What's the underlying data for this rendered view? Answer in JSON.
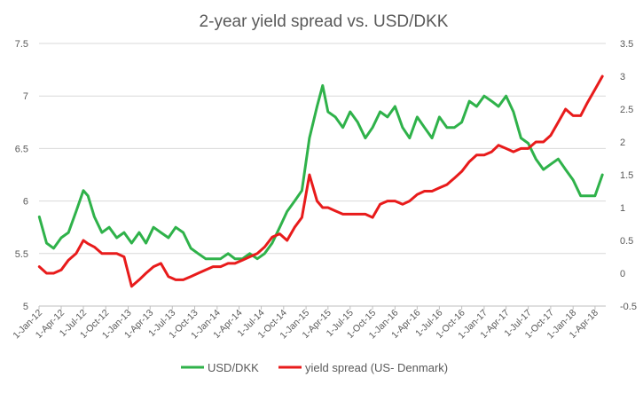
{
  "chart_data": {
    "type": "line",
    "title": "2-year yield spread vs. USD/DKK",
    "xlabel": "",
    "ylabel_left": "",
    "ylabel_right": "",
    "y_left_lim": [
      5,
      7.5
    ],
    "y_left_ticks": [
      "5",
      "5.5",
      "6",
      "6.5",
      "7",
      "7.5"
    ],
    "y_right_lim": [
      -0.5,
      3.5
    ],
    "y_right_ticks": [
      "-0.5",
      "0",
      "0.5",
      "1",
      "1.5",
      "2",
      "2.5",
      "3",
      "3.5"
    ],
    "x_tick_labels": [
      "1-Jan-12",
      "1-Apr-12",
      "1-Jul-12",
      "1-Oct-12",
      "1-Jan-13",
      "1-Apr-13",
      "1-Jul-13",
      "1-Oct-13",
      "1-Jan-14",
      "1-Apr-14",
      "1-Jul-14",
      "1-Oct-14",
      "1-Jan-15",
      "1-Apr-15",
      "1-Jul-15",
      "1-Oct-15",
      "1-Jan-16",
      "1-Apr-16",
      "1-Jul-16",
      "1-Oct-16",
      "1-Jan-17",
      "1-Apr-17",
      "1-Jul-17",
      "1-Oct-17",
      "1-Jan-18",
      "1-Apr-18"
    ],
    "grid": true,
    "legend_position": "bottom",
    "series": [
      {
        "name": "USD/DKK",
        "axis": "left",
        "color": "#2fb24a",
        "x": [
          "2012-01-02",
          "2012-02-01",
          "2012-03-01",
          "2012-04-01",
          "2012-05-01",
          "2012-06-01",
          "2012-07-01",
          "2012-07-20",
          "2012-08-15",
          "2012-09-15",
          "2012-10-15",
          "2012-11-15",
          "2012-12-15",
          "2013-01-15",
          "2013-02-15",
          "2013-03-15",
          "2013-04-15",
          "2013-05-15",
          "2013-06-15",
          "2013-07-15",
          "2013-08-15",
          "2013-09-15",
          "2013-10-15",
          "2013-11-15",
          "2013-12-15",
          "2014-01-15",
          "2014-02-15",
          "2014-03-15",
          "2014-04-15",
          "2014-05-15",
          "2014-06-15",
          "2014-07-15",
          "2014-08-15",
          "2014-09-15",
          "2014-10-15",
          "2014-11-15",
          "2014-12-15",
          "2015-01-15",
          "2015-02-15",
          "2015-03-10",
          "2015-04-01",
          "2015-05-01",
          "2015-06-01",
          "2015-07-01",
          "2015-08-01",
          "2015-09-01",
          "2015-10-01",
          "2015-11-01",
          "2015-12-01",
          "2016-01-01",
          "2016-02-01",
          "2016-03-01",
          "2016-04-01",
          "2016-05-01",
          "2016-06-01",
          "2016-07-01",
          "2016-08-01",
          "2016-09-01",
          "2016-10-01",
          "2016-11-01",
          "2016-12-01",
          "2017-01-01",
          "2017-02-01",
          "2017-03-01",
          "2017-04-01",
          "2017-05-01",
          "2017-06-01",
          "2017-07-01",
          "2017-08-01",
          "2017-09-01",
          "2017-10-01",
          "2017-11-01",
          "2017-12-01",
          "2018-01-01",
          "2018-02-01",
          "2018-03-01",
          "2018-04-01",
          "2018-05-01"
        ],
        "values": [
          5.85,
          5.6,
          5.55,
          5.65,
          5.7,
          5.9,
          6.1,
          6.05,
          5.85,
          5.7,
          5.75,
          5.65,
          5.7,
          5.6,
          5.7,
          5.6,
          5.75,
          5.7,
          5.65,
          5.75,
          5.7,
          5.55,
          5.5,
          5.45,
          5.45,
          5.45,
          5.5,
          5.45,
          5.45,
          5.5,
          5.45,
          5.5,
          5.6,
          5.75,
          5.9,
          6.0,
          6.1,
          6.6,
          6.9,
          7.1,
          6.85,
          6.8,
          6.7,
          6.85,
          6.75,
          6.6,
          6.7,
          6.85,
          6.8,
          6.9,
          6.7,
          6.6,
          6.8,
          6.7,
          6.6,
          6.8,
          6.7,
          6.7,
          6.75,
          6.95,
          6.9,
          7.0,
          6.95,
          6.9,
          7.0,
          6.85,
          6.6,
          6.55,
          6.4,
          6.3,
          6.35,
          6.4,
          6.3,
          6.2,
          6.05,
          6.05,
          6.05,
          6.25
        ]
      },
      {
        "name": "yield spread (US- Denmark)",
        "axis": "right",
        "color": "#e81b1b",
        "x": [
          "2012-01-02",
          "2012-02-01",
          "2012-03-01",
          "2012-04-01",
          "2012-05-01",
          "2012-06-01",
          "2012-07-01",
          "2012-07-20",
          "2012-08-15",
          "2012-09-15",
          "2012-10-15",
          "2012-11-15",
          "2012-12-15",
          "2013-01-15",
          "2013-02-15",
          "2013-03-15",
          "2013-04-15",
          "2013-05-15",
          "2013-06-15",
          "2013-07-15",
          "2013-08-15",
          "2013-09-15",
          "2013-10-15",
          "2013-11-15",
          "2013-12-15",
          "2014-01-15",
          "2014-02-15",
          "2014-03-15",
          "2014-04-15",
          "2014-05-15",
          "2014-06-15",
          "2014-07-15",
          "2014-08-15",
          "2014-09-15",
          "2014-10-15",
          "2014-11-15",
          "2014-12-15",
          "2015-01-15",
          "2015-02-15",
          "2015-03-10",
          "2015-04-01",
          "2015-05-01",
          "2015-06-01",
          "2015-07-01",
          "2015-08-01",
          "2015-09-01",
          "2015-10-01",
          "2015-11-01",
          "2015-12-01",
          "2016-01-01",
          "2016-02-01",
          "2016-03-01",
          "2016-04-01",
          "2016-05-01",
          "2016-06-01",
          "2016-07-01",
          "2016-08-01",
          "2016-09-01",
          "2016-10-01",
          "2016-11-01",
          "2016-12-01",
          "2017-01-01",
          "2017-02-01",
          "2017-03-01",
          "2017-04-01",
          "2017-05-01",
          "2017-06-01",
          "2017-07-01",
          "2017-08-01",
          "2017-09-01",
          "2017-10-01",
          "2017-11-01",
          "2017-12-01",
          "2018-01-01",
          "2018-02-01",
          "2018-03-01",
          "2018-04-01",
          "2018-05-01"
        ],
        "values": [
          0.1,
          0.0,
          0.0,
          0.05,
          0.2,
          0.3,
          0.5,
          0.45,
          0.4,
          0.3,
          0.3,
          0.3,
          0.25,
          -0.2,
          -0.1,
          0.0,
          0.1,
          0.15,
          -0.05,
          -0.1,
          -0.1,
          -0.05,
          0.0,
          0.05,
          0.1,
          0.1,
          0.15,
          0.15,
          0.2,
          0.25,
          0.3,
          0.4,
          0.55,
          0.6,
          0.5,
          0.7,
          0.85,
          1.5,
          1.1,
          1.0,
          1.0,
          0.95,
          0.9,
          0.9,
          0.9,
          0.9,
          0.85,
          1.05,
          1.1,
          1.1,
          1.05,
          1.1,
          1.2,
          1.25,
          1.25,
          1.3,
          1.35,
          1.45,
          1.55,
          1.7,
          1.8,
          1.8,
          1.85,
          1.95,
          1.9,
          1.85,
          1.9,
          1.9,
          2.0,
          2.0,
          2.1,
          2.3,
          2.5,
          2.4,
          2.4,
          2.6,
          2.8,
          3.0
        ]
      }
    ]
  }
}
